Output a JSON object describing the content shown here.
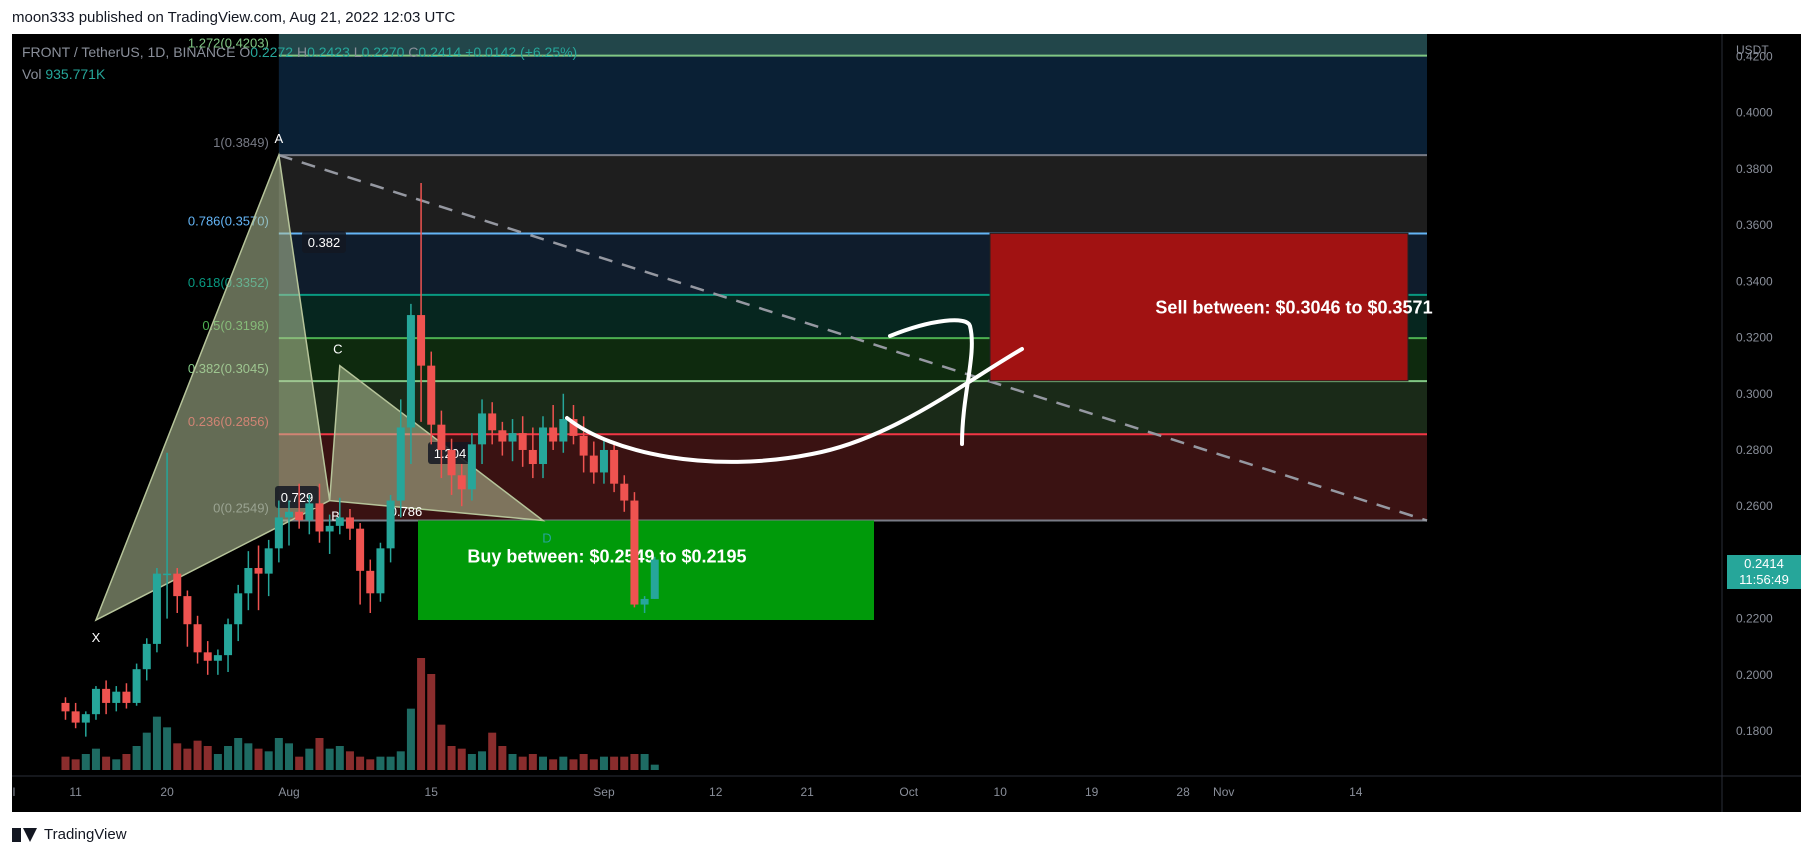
{
  "publish": {
    "text": "moon333 published on TradingView.com, Aug 21, 2022 12:03 UTC"
  },
  "legend": {
    "symbol": "FRONT / TetherUS, 1D, BINANCE",
    "open_label": "O",
    "open": "0.2272",
    "high_label": "H",
    "high": "0.2423",
    "low_label": "L",
    "low": "0.2270",
    "close_label": "C",
    "close": "0.2414",
    "change": "+0.0142 (+6.25%)",
    "vol_label": "Vol",
    "vol": "935.771K"
  },
  "price_axis": {
    "unit": "USDT",
    "current_price": "0.2414",
    "countdown": "11:56:49"
  },
  "footer": {
    "brand": "TradingView"
  },
  "colors": {
    "up": "#26a69a",
    "down": "#ef5350",
    "buy_zone": "#009a0a",
    "sell_zone": "#a11212",
    "harmonic": "#b6c49a"
  },
  "chart_data": {
    "type": "candlestick",
    "y_range": [
      0.164,
      0.428
    ],
    "y_ticks": [
      "0.4200",
      "0.4000",
      "0.3800",
      "0.3600",
      "0.3400",
      "0.3200",
      "0.3000",
      "0.2800",
      "0.2600",
      "0.2400",
      "0.2200",
      "0.2000",
      "0.1800"
    ],
    "y_tick_values": [
      0.42,
      0.4,
      0.38,
      0.36,
      0.34,
      0.32,
      0.3,
      0.28,
      0.26,
      0.24,
      0.22,
      0.2,
      0.18
    ],
    "x_ticks": [
      {
        "label": "l",
        "day": -22
      },
      {
        "label": "11",
        "day": -21
      },
      {
        "label": "20",
        "day": -12
      },
      {
        "label": "Aug",
        "day": 0
      },
      {
        "label": "15",
        "day": 14
      },
      {
        "label": "Sep",
        "day": 31
      },
      {
        "label": "12",
        "day": 42
      },
      {
        "label": "21",
        "day": 51
      },
      {
        "label": "Oct",
        "day": 61
      },
      {
        "label": "10",
        "day": 70
      },
      {
        "label": "19",
        "day": 79
      },
      {
        "label": "28",
        "day": 88
      },
      {
        "label": "Nov",
        "day": 92
      },
      {
        "label": "14",
        "day": 105
      }
    ],
    "candles": [
      [
        0.19,
        0.192,
        0.184,
        0.187
      ],
      [
        0.187,
        0.19,
        0.181,
        0.183
      ],
      [
        0.183,
        0.187,
        0.178,
        0.186
      ],
      [
        0.186,
        0.196,
        0.184,
        0.195
      ],
      [
        0.195,
        0.198,
        0.186,
        0.19
      ],
      [
        0.19,
        0.196,
        0.187,
        0.194
      ],
      [
        0.194,
        0.197,
        0.188,
        0.19
      ],
      [
        0.19,
        0.204,
        0.189,
        0.202
      ],
      [
        0.202,
        0.213,
        0.198,
        0.211
      ],
      [
        0.211,
        0.238,
        0.208,
        0.236
      ],
      [
        0.236,
        0.279,
        0.22,
        0.236
      ],
      [
        0.236,
        0.238,
        0.222,
        0.228
      ],
      [
        0.228,
        0.23,
        0.21,
        0.218
      ],
      [
        0.218,
        0.221,
        0.204,
        0.208
      ],
      [
        0.208,
        0.212,
        0.2,
        0.205
      ],
      [
        0.205,
        0.209,
        0.2,
        0.207
      ],
      [
        0.207,
        0.22,
        0.201,
        0.218
      ],
      [
        0.218,
        0.232,
        0.212,
        0.229
      ],
      [
        0.229,
        0.244,
        0.223,
        0.238
      ],
      [
        0.238,
        0.246,
        0.223,
        0.236
      ],
      [
        0.236,
        0.248,
        0.228,
        0.245
      ],
      [
        0.245,
        0.262,
        0.24,
        0.256
      ],
      [
        0.256,
        0.262,
        0.246,
        0.258
      ],
      [
        0.258,
        0.268,
        0.252,
        0.255
      ],
      [
        0.255,
        0.264,
        0.25,
        0.261
      ],
      [
        0.261,
        0.268,
        0.247,
        0.251
      ],
      [
        0.251,
        0.257,
        0.243,
        0.253
      ],
      [
        0.253,
        0.263,
        0.25,
        0.256
      ],
      [
        0.256,
        0.259,
        0.248,
        0.252
      ],
      [
        0.252,
        0.254,
        0.225,
        0.237
      ],
      [
        0.237,
        0.241,
        0.222,
        0.229
      ],
      [
        0.229,
        0.247,
        0.226,
        0.245
      ],
      [
        0.245,
        0.264,
        0.24,
        0.262
      ],
      [
        0.262,
        0.298,
        0.256,
        0.288
      ],
      [
        0.288,
        0.332,
        0.275,
        0.328
      ],
      [
        0.328,
        0.375,
        0.29,
        0.31
      ],
      [
        0.31,
        0.315,
        0.282,
        0.289
      ],
      [
        0.289,
        0.294,
        0.27,
        0.28
      ],
      [
        0.28,
        0.284,
        0.264,
        0.271
      ],
      [
        0.271,
        0.275,
        0.26,
        0.266
      ],
      [
        0.266,
        0.286,
        0.262,
        0.282
      ],
      [
        0.282,
        0.298,
        0.275,
        0.293
      ],
      [
        0.293,
        0.297,
        0.282,
        0.287
      ],
      [
        0.287,
        0.29,
        0.278,
        0.283
      ],
      [
        0.283,
        0.291,
        0.276,
        0.286
      ],
      [
        0.286,
        0.292,
        0.274,
        0.28
      ],
      [
        0.28,
        0.288,
        0.27,
        0.275
      ],
      [
        0.275,
        0.292,
        0.27,
        0.288
      ],
      [
        0.288,
        0.296,
        0.28,
        0.283
      ],
      [
        0.283,
        0.3,
        0.279,
        0.291
      ],
      [
        0.291,
        0.296,
        0.282,
        0.285
      ],
      [
        0.285,
        0.292,
        0.272,
        0.278
      ],
      [
        0.278,
        0.283,
        0.268,
        0.272
      ],
      [
        0.272,
        0.284,
        0.268,
        0.28
      ],
      [
        0.28,
        0.283,
        0.265,
        0.268
      ],
      [
        0.268,
        0.271,
        0.258,
        0.262
      ],
      [
        0.262,
        0.265,
        0.224,
        0.225
      ],
      [
        0.225,
        0.228,
        0.222,
        0.227
      ],
      [
        0.227,
        0.242,
        0.227,
        0.241
      ]
    ],
    "volumes": [
      5,
      4,
      6,
      8,
      5,
      4,
      6,
      9,
      14,
      20,
      16,
      10,
      8,
      11,
      9,
      6,
      9,
      12,
      10,
      8,
      7,
      12,
      10,
      5,
      8,
      12,
      8,
      9,
      7,
      5,
      4,
      5,
      5,
      7,
      23,
      42,
      36,
      17,
      9,
      8,
      6,
      7,
      14,
      9,
      6,
      5,
      6,
      5,
      4,
      5,
      4,
      6,
      4,
      5,
      5,
      5,
      6,
      6,
      2
    ],
    "volume_max": 60,
    "fib_levels": [
      {
        "label": "1.272(0.4203)",
        "value": 0.4203,
        "color": "#81c784"
      },
      {
        "label": "1(0.3849)",
        "value": 0.3849,
        "color": "#787b86"
      },
      {
        "label": "0.786(0.3570)",
        "value": 0.357,
        "color": "#64b5f6"
      },
      {
        "label": "0.618(0.3352)",
        "value": 0.3352,
        "color": "#089981"
      },
      {
        "label": "0.5(0.3198)",
        "value": 0.3198,
        "color": "#4caf50"
      },
      {
        "label": "0.382(0.3045)",
        "value": 0.3045,
        "color": "#81c784"
      },
      {
        "label": "0.236(0.2856)",
        "value": 0.2856,
        "color": "#f23645"
      },
      {
        "label": "0(0.2549)",
        "value": 0.2549,
        "color": "#787b86"
      }
    ],
    "harmonic_points": [
      {
        "label": "X",
        "day": -19,
        "price": 0.2195
      },
      {
        "label": "A",
        "day": -1,
        "price": 0.3849
      },
      {
        "label": "B",
        "day": 4,
        "price": 0.262
      },
      {
        "label": "C",
        "day": 5,
        "price": 0.31
      },
      {
        "label": "D",
        "day": 25,
        "price": 0.2549
      }
    ],
    "harmonic_ratios": [
      {
        "label": "0.382"
      },
      {
        "label": "0.729"
      },
      {
        "label": "1.204"
      },
      {
        "label": "0.786"
      }
    ],
    "buy_zone": {
      "label": "Buy between: $0.2549 to $0.2195",
      "top": 0.2549,
      "bottom": 0.2195,
      "day_start": 13,
      "day_end": 62
    },
    "sell_zone": {
      "label": "Sell between: $0.3046 to $0.3571",
      "top": 0.3571,
      "bottom": 0.3046,
      "day_start": 70,
      "day_end": 117
    }
  }
}
